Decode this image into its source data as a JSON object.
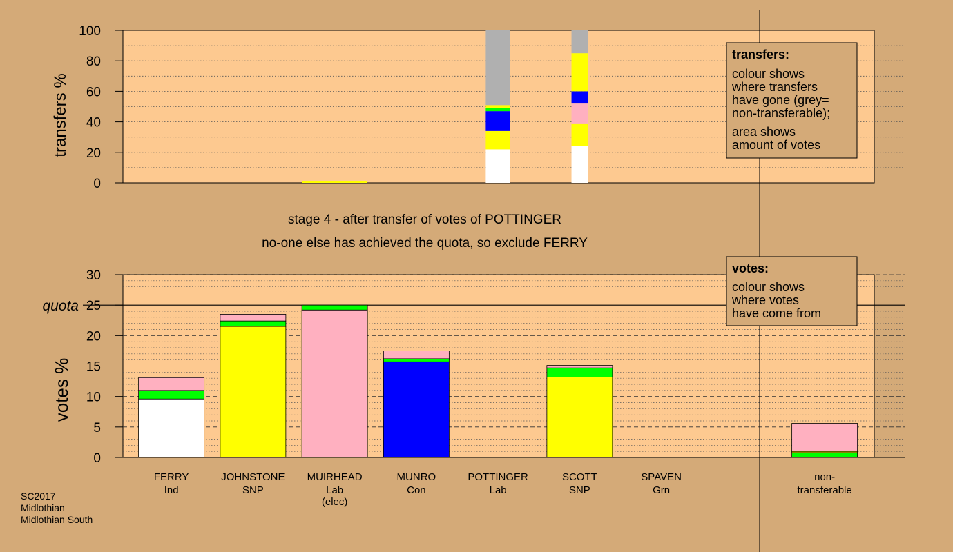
{
  "stage_title": "stage 4 - after transfer of votes of POTTINGER",
  "stage_subtitle": "no-one else has achieved the quota, so exclude FERRY",
  "footer": {
    "line1": "SC2017",
    "line2": "Midlothian",
    "line3": "Midlothian South"
  },
  "colors": {
    "background": "#d4aa78",
    "plot_area": "#fdc990",
    "ferry": "#ffffff",
    "snp": "#ffff00",
    "lab": "#ffb0c0",
    "con": "#0000ff",
    "green": "#00ff00",
    "non_transferable": "#b0b0b0"
  },
  "chart_data": [
    {
      "type": "bar",
      "id": "transfers",
      "ylabel": "transfers %",
      "ylim": [
        0,
        100
      ],
      "yticks": [
        0,
        20,
        40,
        60,
        80,
        100
      ],
      "categories": [
        "FERRY",
        "JOHNSTONE",
        "MUIRHEAD",
        "MUNRO",
        "POTTINGER",
        "SCOTT",
        "SPAVEN",
        "non-transferable"
      ],
      "legend": {
        "title": "transfers:",
        "lines": [
          "colour shows",
          "where transfers",
          "have gone (grey=",
          "non-transferable);"
        ],
        "lines2": [
          "area shows",
          "amount of votes"
        ]
      },
      "columns": [
        {
          "category": "MUIRHEAD",
          "width_fraction": 0.8,
          "segments": [
            {
              "from": 0,
              "to": 1,
              "color": "#ffff00"
            }
          ]
        },
        {
          "category": "POTTINGER",
          "width_fraction": 0.3,
          "segments": [
            {
              "from": 0,
              "to": 22,
              "color": "#ffffff"
            },
            {
              "from": 22,
              "to": 34,
              "color": "#ffff00"
            },
            {
              "from": 34,
              "to": 47,
              "color": "#0000ff"
            },
            {
              "from": 47,
              "to": 49,
              "color": "#00ff00"
            },
            {
              "from": 49,
              "to": 51,
              "color": "#ffff00"
            },
            {
              "from": 51,
              "to": 100,
              "color": "#b0b0b0"
            }
          ]
        },
        {
          "category": "SCOTT",
          "width_fraction": 0.2,
          "segments": [
            {
              "from": 0,
              "to": 24,
              "color": "#ffffff"
            },
            {
              "from": 24,
              "to": 39,
              "color": "#ffff00"
            },
            {
              "from": 39,
              "to": 52,
              "color": "#ffb0c0"
            },
            {
              "from": 52,
              "to": 60,
              "color": "#0000ff"
            },
            {
              "from": 60,
              "to": 85,
              "color": "#ffff00"
            },
            {
              "from": 85,
              "to": 100,
              "color": "#b0b0b0"
            }
          ]
        }
      ]
    },
    {
      "type": "bar",
      "id": "votes",
      "ylabel": "votes %",
      "ylim": [
        0,
        30
      ],
      "yticks": [
        0,
        5,
        10,
        15,
        20,
        25,
        30
      ],
      "quota": 25,
      "quota_label": "quota",
      "legend": {
        "title": "votes:",
        "lines": [
          "colour shows",
          "where votes",
          "have come from"
        ]
      },
      "candidates": [
        {
          "name": "FERRY",
          "party": "Ind",
          "extra": "",
          "segments": [
            {
              "from": 0,
              "to": 9.6,
              "color": "#ffffff"
            },
            {
              "from": 9.6,
              "to": 11.0,
              "color": "#00ff00"
            },
            {
              "from": 11.0,
              "to": 13.1,
              "color": "#ffb0c0"
            }
          ]
        },
        {
          "name": "JOHNSTONE",
          "party": "SNP",
          "extra": "",
          "segments": [
            {
              "from": 0,
              "to": 21.5,
              "color": "#ffff00"
            },
            {
              "from": 21.5,
              "to": 22.4,
              "color": "#00ff00"
            },
            {
              "from": 22.4,
              "to": 23.5,
              "color": "#ffb0c0"
            }
          ]
        },
        {
          "name": "MUIRHEAD",
          "party": "Lab",
          "extra": "(elec)",
          "segments": [
            {
              "from": 0,
              "to": 24.2,
              "color": "#ffb0c0"
            },
            {
              "from": 24.2,
              "to": 25.0,
              "color": "#00ff00"
            }
          ]
        },
        {
          "name": "MUNRO",
          "party": "Con",
          "extra": "",
          "segments": [
            {
              "from": 0,
              "to": 15.7,
              "color": "#0000ff"
            },
            {
              "from": 15.7,
              "to": 16.2,
              "color": "#00ff00"
            },
            {
              "from": 16.2,
              "to": 17.5,
              "color": "#ffb0c0"
            }
          ]
        },
        {
          "name": "POTTINGER",
          "party": "Lab",
          "extra": "",
          "segments": []
        },
        {
          "name": "SCOTT",
          "party": "SNP",
          "extra": "",
          "segments": [
            {
              "from": 0,
              "to": 13.2,
              "color": "#ffff00"
            },
            {
              "from": 13.2,
              "to": 14.7,
              "color": "#00ff00"
            },
            {
              "from": 14.7,
              "to": 15.1,
              "color": "#ffb0c0"
            }
          ]
        },
        {
          "name": "SPAVEN",
          "party": "Grn",
          "extra": "",
          "segments": []
        },
        {
          "name": "",
          "party": "",
          "extra": "",
          "spacer": true,
          "segments": []
        },
        {
          "name": "non-",
          "party": "transferable",
          "extra": "",
          "segments": [
            {
              "from": 0,
              "to": 0.8,
              "color": "#00ff00"
            },
            {
              "from": 0.8,
              "to": 1.0,
              "color": "#ffff00"
            },
            {
              "from": 1.0,
              "to": 5.6,
              "color": "#ffb0c0"
            }
          ]
        }
      ]
    }
  ]
}
